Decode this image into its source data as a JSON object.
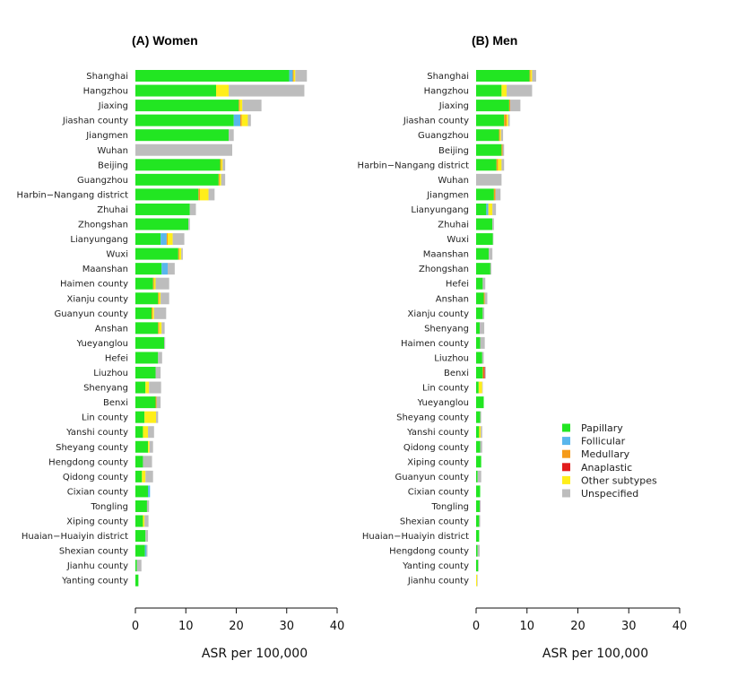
{
  "legend": {
    "items": [
      {
        "label": "Papillary",
        "color": "#22e622"
      },
      {
        "label": "Follicular",
        "color": "#59b6ec"
      },
      {
        "label": "Medullary",
        "color": "#f59b1a"
      },
      {
        "label": "Anaplastic",
        "color": "#e21c1c"
      },
      {
        "label": "Other subtypes",
        "color": "#ffee1a"
      },
      {
        "label": "Unspecified",
        "color": "#bdbdbd"
      }
    ]
  },
  "chart_data": [
    {
      "type": "bar",
      "orientation": "horizontal",
      "stacked": true,
      "title": "(A) Women",
      "xlabel": "ASR per 100,000",
      "xlim": [
        0,
        40
      ],
      "xticks": [
        "0",
        "10",
        "20",
        "30",
        "40"
      ],
      "categories": [
        "Shanghai",
        "Hangzhou",
        "Jiaxing",
        "Jiashan county",
        "Jiangmen",
        "Wuhan",
        "Beijing",
        "Guangzhou",
        "Harbin−Nangang district",
        "Zhuhai",
        "Zhongshan",
        "Lianyungang",
        "Wuxi",
        "Maanshan",
        "Haimen county",
        "Xianju county",
        "Guanyun county",
        "Anshan",
        "Yueyanglou",
        "Hefei",
        "Liuzhou",
        "Shenyang",
        "Benxi",
        "Lin county",
        "Yanshi county",
        "Sheyang county",
        "Hengdong county",
        "Qidong county",
        "Cixian county",
        "Tongling",
        "Xiping county",
        "Huaian−Huaiyin district",
        "Shexian county",
        "Jianhu county",
        "Yanting county"
      ],
      "series": [
        {
          "name": "Papillary",
          "values": [
            30.5,
            16.0,
            20.5,
            19.5,
            18.5,
            0,
            16.8,
            16.5,
            12.5,
            10.8,
            10.5,
            5.0,
            8.5,
            5.2,
            3.5,
            4.5,
            3.2,
            4.5,
            5.7,
            4.5,
            4.0,
            2.0,
            4.0,
            1.8,
            1.5,
            2.5,
            1.5,
            1.3,
            2.5,
            2.3,
            1.5,
            2.0,
            1.9,
            0.3,
            0.6
          ]
        },
        {
          "name": "Follicular",
          "values": [
            0.7,
            0,
            0,
            1.3,
            0,
            0,
            0,
            0,
            0,
            0,
            0,
            1.2,
            0,
            1.2,
            0,
            0,
            0,
            0,
            0,
            0,
            0,
            0,
            0,
            0,
            0,
            0,
            0,
            0,
            0.4,
            0,
            0,
            0,
            0.3,
            0,
            0
          ]
        },
        {
          "name": "Medullary",
          "values": [
            0.2,
            0,
            0.2,
            0.3,
            0,
            0,
            0.2,
            0.2,
            0.3,
            0,
            0,
            0.2,
            0.2,
            0,
            0.2,
            0.2,
            0.2,
            0.2,
            0,
            0,
            0,
            0,
            0.2,
            0,
            0,
            0,
            0,
            0,
            0,
            0,
            0,
            0,
            0,
            0,
            0
          ]
        },
        {
          "name": "Anaplastic",
          "values": [
            0,
            0,
            0,
            0,
            0,
            0,
            0,
            0,
            0,
            0,
            0,
            0,
            0,
            0,
            0,
            0,
            0,
            0,
            0,
            0,
            0,
            0,
            0,
            0,
            0,
            0,
            0,
            0,
            0,
            0,
            0,
            0,
            0,
            0,
            0
          ]
        },
        {
          "name": "Other subtypes",
          "values": [
            0.3,
            2.5,
            0.5,
            1.2,
            0,
            0,
            0.3,
            0.3,
            1.7,
            0,
            0,
            1.0,
            0.4,
            0,
            0.3,
            0.3,
            0.3,
            0.5,
            0,
            0,
            0,
            0.7,
            0,
            2.3,
            1.0,
            0.3,
            0,
            0.7,
            0,
            0,
            0.3,
            0,
            0,
            0,
            0
          ]
        },
        {
          "name": "Unspecified",
          "values": [
            2.3,
            15.0,
            3.8,
            0.6,
            1.0,
            19.2,
            0.5,
            0.8,
            1.2,
            1.2,
            0.3,
            2.3,
            0.3,
            1.4,
            2.7,
            1.7,
            2.4,
            0.6,
            0.2,
            0.8,
            1.0,
            2.4,
            0.8,
            0.4,
            1.2,
            0.7,
            1.8,
            1.5,
            0,
            0.4,
            0.8,
            0.5,
            0.2,
            0.9,
            0
          ]
        }
      ]
    },
    {
      "type": "bar",
      "orientation": "horizontal",
      "stacked": true,
      "title": "(B) Men",
      "xlabel": "ASR per 100,000",
      "xlim": [
        0,
        40
      ],
      "xticks": [
        "0",
        "10",
        "20",
        "30",
        "40"
      ],
      "categories": [
        "Shanghai",
        "Hangzhou",
        "Jiaxing",
        "Jiashan county",
        "Guangzhou",
        "Beijing",
        "Harbin−Nangang district",
        "Wuhan",
        "Jiangmen",
        "Lianyungang",
        "Zhuhai",
        "Wuxi",
        "Maanshan",
        "Zhongshan",
        "Hefei",
        "Anshan",
        "Xianju county",
        "Shenyang",
        "Haimen county",
        "Liuzhou",
        "Benxi",
        "Lin county",
        "Yueyanglou",
        "Sheyang county",
        "Yanshi county",
        "Qidong county",
        "Xiping county",
        "Guanyun county",
        "Cixian county",
        "Tongling",
        "Shexian county",
        "Huaian−Huaiyin district",
        "Hengdong county",
        "Yanting county",
        "Jianhu county"
      ],
      "series": [
        {
          "name": "Papillary",
          "values": [
            10.5,
            5.0,
            6.5,
            5.5,
            4.5,
            5.0,
            4.0,
            0,
            3.5,
            2.0,
            3.2,
            3.3,
            2.5,
            2.8,
            1.3,
            1.5,
            1.3,
            0.7,
            0.8,
            1.2,
            1.3,
            0.5,
            1.5,
            0.8,
            0.6,
            0.8,
            1.0,
            0.3,
            0.8,
            0.7,
            0.6,
            0.6,
            0.3,
            0.4,
            0
          ]
        },
        {
          "name": "Follicular",
          "values": [
            0,
            0,
            0,
            0,
            0,
            0,
            0,
            0,
            0,
            0.4,
            0,
            0,
            0,
            0,
            0,
            0,
            0,
            0,
            0,
            0,
            0,
            0,
            0,
            0,
            0,
            0,
            0,
            0,
            0,
            0,
            0,
            0,
            0,
            0,
            0
          ]
        },
        {
          "name": "Medullary",
          "values": [
            0.2,
            0,
            0.2,
            0.5,
            0.2,
            0.2,
            0.3,
            0,
            0.3,
            0,
            0,
            0,
            0,
            0,
            0,
            0.2,
            0,
            0,
            0,
            0,
            0.2,
            0,
            0,
            0,
            0,
            0,
            0,
            0,
            0,
            0,
            0,
            0,
            0,
            0,
            0
          ]
        },
        {
          "name": "Anaplastic",
          "values": [
            0,
            0,
            0,
            0,
            0,
            0,
            0,
            0,
            0,
            0,
            0,
            0,
            0,
            0,
            0,
            0,
            0,
            0,
            0,
            0,
            0.2,
            0,
            0,
            0,
            0,
            0,
            0,
            0,
            0,
            0,
            0,
            0,
            0,
            0,
            0
          ]
        },
        {
          "name": "Other subtypes",
          "values": [
            0.3,
            1.0,
            0,
            0.3,
            0.2,
            0,
            0.7,
            0,
            0,
            0.8,
            0,
            0,
            0,
            0,
            0,
            0,
            0,
            0,
            0,
            0,
            0,
            0.7,
            0,
            0,
            0.3,
            0,
            0,
            0,
            0,
            0,
            0,
            0,
            0,
            0,
            0.2
          ]
        },
        {
          "name": "Unspecified",
          "values": [
            0.8,
            5.0,
            2.0,
            0.3,
            0.4,
            0.3,
            0.5,
            5.0,
            1.0,
            0.7,
            0.3,
            0.1,
            0.7,
            0.2,
            0.5,
            0.5,
            0.3,
            0.9,
            0.9,
            0.3,
            0.2,
            0.1,
            0,
            0.2,
            0.3,
            0.4,
            0,
            0.7,
            0,
            0.2,
            0.2,
            0,
            0.4,
            0.1,
            0.1
          ]
        }
      ]
    }
  ]
}
